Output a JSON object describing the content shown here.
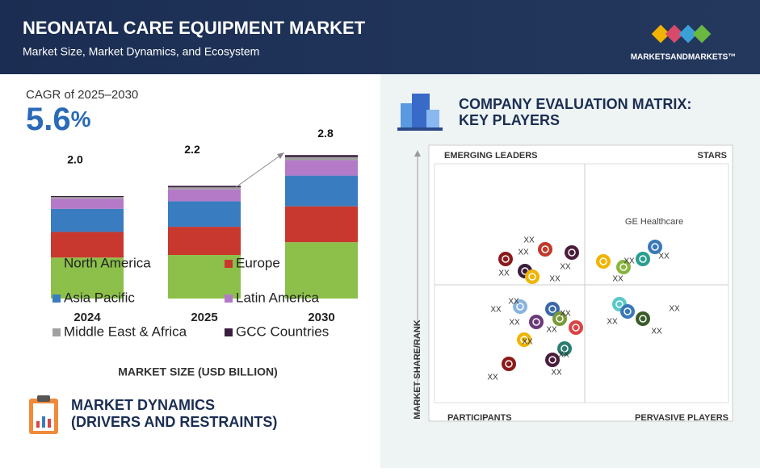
{
  "header": {
    "title": "NEONATAL CARE EQUIPMENT MARKET",
    "subtitle": "Market Size, Market Dynamics, and Ecosystem",
    "logo": "MARKETSANDMARKETS™"
  },
  "cagr": {
    "label": "CAGR of 2025–2030",
    "value": "5.6",
    "unit": "%"
  },
  "chart_data": {
    "type": "bar",
    "stacked": true,
    "xlabel": "MARKET SIZE (USD BILLION)",
    "categories": [
      "2024",
      "2025",
      "2030"
    ],
    "series": [
      {
        "name": "North America",
        "color": "#8cc04a",
        "values": [
          0.8,
          0.85,
          1.1
        ]
      },
      {
        "name": "Europe",
        "color": "#c8382e",
        "values": [
          0.5,
          0.55,
          0.7
        ]
      },
      {
        "name": "Asia Pacific",
        "color": "#3a7cc0",
        "values": [
          0.45,
          0.5,
          0.6
        ]
      },
      {
        "name": "Latin America",
        "color": "#b47ac8",
        "values": [
          0.2,
          0.23,
          0.3
        ]
      },
      {
        "name": "Middle East & Africa",
        "color": "#a0a0a0",
        "values": [
          0.03,
          0.04,
          0.06
        ]
      },
      {
        "name": "GCC Countries",
        "color": "#3a2040",
        "values": [
          0.02,
          0.03,
          0.04
        ]
      }
    ],
    "totals": {
      "values": [
        2,
        2.2,
        2.8
      ],
      "value_labels": [
        "2.0",
        "2.2",
        "2.8"
      ]
    }
  },
  "market_dynamics": {
    "line1": "MARKET DYNAMICS",
    "line2": "(DRIVERS AND RESTRAINTS)"
  },
  "matrix": {
    "title_line1": "COMPANY EVALUATION MATRIX:",
    "title_line2": "KEY PLAYERS",
    "top_left": "EMERGING LEADERS",
    "top_right": "STARS",
    "bottom_left": "PARTICIPANTS",
    "bottom_right": "PERVASIVE PLAYERS",
    "y_axis": "MARKET SHARE/RANK",
    "highlight": "GE Healthcare",
    "player_labels": [
      "XX",
      "XX",
      "XX",
      "XX",
      "XX",
      "XX",
      "XX",
      "XX",
      "XX",
      "XX",
      "XX",
      "XX",
      "XX",
      "XX",
      "XX",
      "XX",
      "XX",
      "XX",
      "XX",
      "XX"
    ]
  }
}
